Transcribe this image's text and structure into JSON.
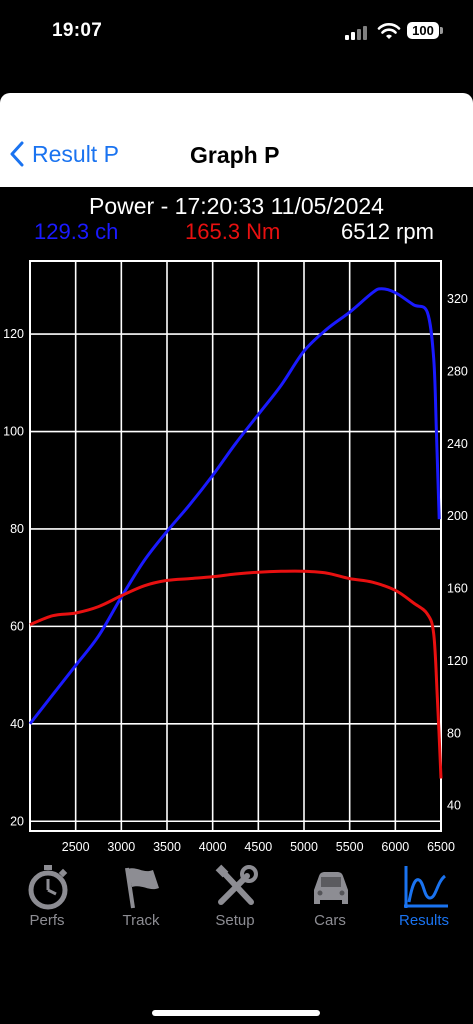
{
  "status": {
    "time": "19:07",
    "battery": "100"
  },
  "nav": {
    "back_label": "Result P",
    "title": "Graph P"
  },
  "chart_header": {
    "title": "Power - 17:20:33 11/05/2024",
    "power_readout": "129.3 ch",
    "torque_readout": "165.3 Nm",
    "rpm_readout": "6512 rpm"
  },
  "colors": {
    "power": "#1a1aff",
    "torque": "#e81010",
    "accent": "#1a73f0",
    "grid": "#ffffff"
  },
  "chart_data": {
    "type": "line",
    "x_ticks": [
      2500,
      3000,
      3500,
      4000,
      4500,
      5000,
      5500,
      6000,
      6500
    ],
    "y_left_ticks": [
      20,
      40,
      60,
      80,
      100,
      120
    ],
    "y_right_ticks": [
      40,
      80,
      120,
      160,
      200,
      240,
      280,
      320
    ],
    "xlim": [
      2000,
      6500
    ],
    "ylim_left": [
      18,
      135
    ],
    "ylim_right": [
      26,
      341
    ],
    "grid": true,
    "series": [
      {
        "axis": "left",
        "x": [
          2000,
          2250,
          2500,
          2750,
          3000,
          3250,
          3500,
          3750,
          4000,
          4250,
          4500,
          4750,
          5000,
          5250,
          5500,
          5750,
          5850,
          6000,
          6200,
          6350,
          6420,
          6450,
          6480
        ],
        "y": [
          40,
          46,
          52,
          58,
          66,
          73.5,
          79.5,
          85,
          91,
          97.5,
          103.5,
          109.5,
          116.5,
          121,
          124.5,
          128.5,
          129.3,
          128.5,
          126,
          124.5,
          115,
          100,
          82
        ]
      },
      {
        "axis": "right",
        "x": [
          2000,
          2250,
          2500,
          2750,
          3000,
          3250,
          3500,
          3750,
          4000,
          4250,
          4500,
          4750,
          5000,
          5250,
          5500,
          5750,
          6000,
          6200,
          6350,
          6420,
          6460,
          6500
        ],
        "y": [
          140,
          145,
          146.5,
          150,
          156,
          161.5,
          164.5,
          165.5,
          166.5,
          168,
          169,
          169.5,
          169.5,
          168.5,
          165.5,
          163.5,
          159,
          152,
          146,
          135,
          100,
          55
        ]
      }
    ]
  },
  "tabs": [
    {
      "label": "Perfs",
      "icon": "stopwatch-icon"
    },
    {
      "label": "Track",
      "icon": "flag-icon"
    },
    {
      "label": "Setup",
      "icon": "tools-icon"
    },
    {
      "label": "Cars",
      "icon": "car-icon"
    },
    {
      "label": "Results",
      "icon": "results-graph-icon"
    }
  ]
}
